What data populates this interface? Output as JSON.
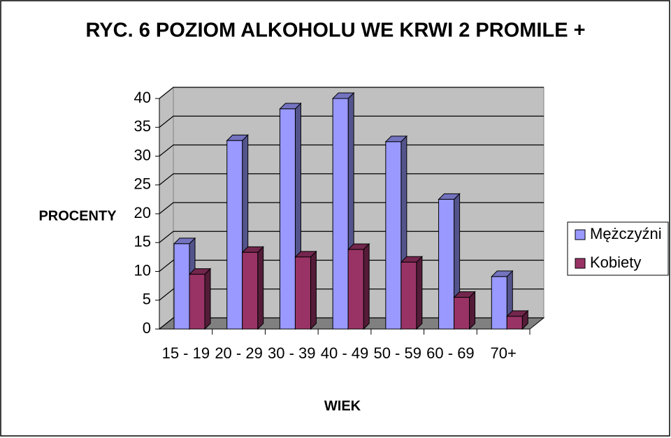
{
  "chart_data": {
    "type": "bar3d",
    "title": "RYC. 6 POZIOM ALKOHOLU WE KRWI 2 PROMILE +",
    "x_label": "WIEK",
    "y_label": "PROCENTY",
    "categories": [
      "15 - 19",
      "20 - 29",
      "30 - 39",
      "40 - 49",
      "50 - 59",
      "60 - 69",
      "70+"
    ],
    "series": [
      {
        "name": "Mężczyźni",
        "color": "#9999ff",
        "values": [
          14.8,
          32.7,
          38.2,
          40,
          32.5,
          22.5,
          9.1
        ]
      },
      {
        "name": "Kobiety",
        "color": "#993366",
        "values": [
          9.5,
          13.3,
          12.5,
          13.8,
          11.6,
          5.5,
          2.2
        ]
      }
    ],
    "ylim": [
      0,
      40
    ],
    "yticks": [
      0,
      5,
      10,
      15,
      20,
      25,
      30,
      35,
      40
    ],
    "grid": true,
    "legend": "right"
  }
}
